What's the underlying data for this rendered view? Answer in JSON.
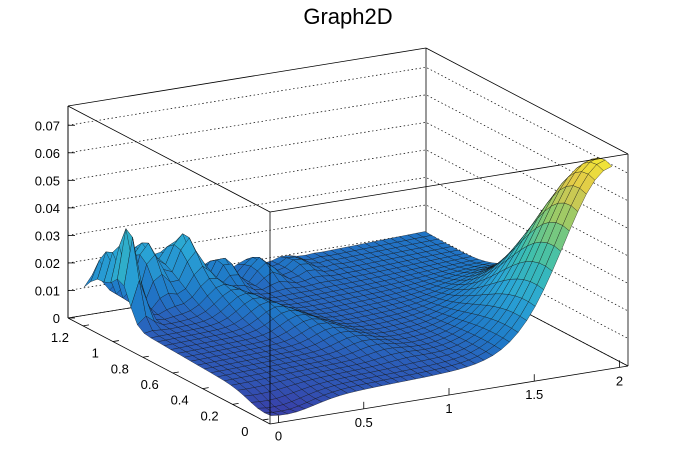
{
  "chart_data": {
    "type": "surface",
    "title": "Graph2D",
    "xlabel": "",
    "ylabel": "",
    "zlabel": "",
    "xlim": [
      -0.05,
      2.05
    ],
    "ylim": [
      -0.05,
      1.3
    ],
    "zlim": [
      0,
      0.077
    ],
    "grid": true,
    "x_ticks": [
      {
        "value": 0,
        "label": "0"
      },
      {
        "value": 0.5,
        "label": "0.5"
      },
      {
        "value": 1,
        "label": "1"
      },
      {
        "value": 1.5,
        "label": "1.5"
      },
      {
        "value": 2,
        "label": "2"
      }
    ],
    "y_ticks": [
      {
        "value": 0,
        "label": "0"
      },
      {
        "value": 0.2,
        "label": "0.2"
      },
      {
        "value": 0.4,
        "label": "0.4"
      },
      {
        "value": 0.6,
        "label": "0.6"
      },
      {
        "value": 0.8,
        "label": "0.8"
      },
      {
        "value": 1,
        "label": "1"
      },
      {
        "value": 1.2,
        "label": "1.2"
      }
    ],
    "z_ticks": [
      {
        "value": 0,
        "label": "0"
      },
      {
        "value": 0.01,
        "label": "0.01"
      },
      {
        "value": 0.02,
        "label": "0.02"
      },
      {
        "value": 0.03,
        "label": "0.03"
      },
      {
        "value": 0.04,
        "label": "0.04"
      },
      {
        "value": 0.05,
        "label": "0.05"
      },
      {
        "value": 0.06,
        "label": "0.06"
      },
      {
        "value": 0.07,
        "label": "0.07"
      }
    ],
    "colormap": [
      "#3a3fa8",
      "#1f78c8",
      "#2aa6d6",
      "#3cbfb0",
      "#8ccb6e",
      "#e0c84a",
      "#fbf52a"
    ]
  }
}
